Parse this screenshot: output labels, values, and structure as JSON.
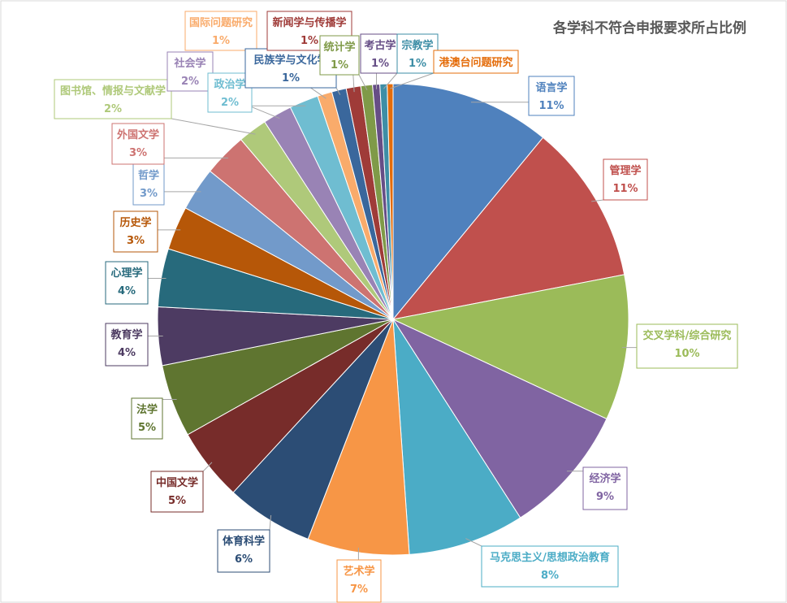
{
  "chart_data": {
    "type": "pie",
    "title": "各学科不符合申报要求所占比例",
    "slices": [
      {
        "label": "语言学",
        "value": 11,
        "display": "11%",
        "color": "#4f81bd"
      },
      {
        "label": "管理学",
        "value": 11,
        "display": "11%",
        "color": "#c0504d"
      },
      {
        "label": "交叉学科/综合研究",
        "value": 10,
        "display": "10%",
        "color": "#9bbb59"
      },
      {
        "label": "经济学",
        "value": 9,
        "display": "9%",
        "color": "#8064a2"
      },
      {
        "label": "马克思主义/思想政治教育",
        "value": 8,
        "display": "8%",
        "color": "#4bacc6"
      },
      {
        "label": "艺术学",
        "value": 7,
        "display": "7%",
        "color": "#f79646"
      },
      {
        "label": "体育科学",
        "value": 6,
        "display": "6%",
        "color": "#2c4d75"
      },
      {
        "label": "中国文学",
        "value": 5,
        "display": "5%",
        "color": "#772c2a"
      },
      {
        "label": "法学",
        "value": 5,
        "display": "5%",
        "color": "#5f7530"
      },
      {
        "label": "教育学",
        "value": 4,
        "display": "4%",
        "color": "#4d3b62"
      },
      {
        "label": "心理学",
        "value": 4,
        "display": "4%",
        "color": "#276a7c"
      },
      {
        "label": "历史学",
        "value": 3,
        "display": "3%",
        "color": "#b65708"
      },
      {
        "label": "哲学",
        "value": 3,
        "display": "3%",
        "color": "#729aca"
      },
      {
        "label": "外国文学",
        "value": 3,
        "display": "3%",
        "color": "#cd7371"
      },
      {
        "label": "图书馆、情报与文献学",
        "value": 2,
        "display": "2%",
        "color": "#afc97a"
      },
      {
        "label": "社会学",
        "value": 2,
        "display": "2%",
        "color": "#9983b5"
      },
      {
        "label": "政治学",
        "value": 2,
        "display": "2%",
        "color": "#6fbdd1"
      },
      {
        "label": "国际问题研究",
        "value": 1,
        "display": "1%",
        "color": "#f9ab6b"
      },
      {
        "label": "民族学与文化学",
        "value": 1,
        "display": "1%",
        "color": "#3a679c"
      },
      {
        "label": "新闻学与传播学",
        "value": 1,
        "display": "1%",
        "color": "#9f3b38"
      },
      {
        "label": "统计学",
        "value": 0.8,
        "display": "1%",
        "color": "#7f9a48"
      },
      {
        "label": "考古学",
        "value": 0.5,
        "display": "1%",
        "color": "#664e86"
      },
      {
        "label": "宗教学",
        "value": 0.5,
        "display": "1%",
        "color": "#3e8ea6"
      },
      {
        "label": "港澳台问题研究",
        "value": 0.4,
        "display": "",
        "color": "#e46c0a"
      }
    ]
  }
}
